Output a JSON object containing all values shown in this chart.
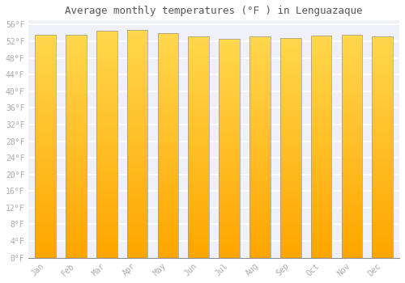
{
  "title": "Average monthly temperatures (°F ) in Lenguazaque",
  "months": [
    "Jan",
    "Feb",
    "Mar",
    "Apr",
    "May",
    "Jun",
    "Jul",
    "Aug",
    "Sep",
    "Oct",
    "Nov",
    "Dec"
  ],
  "values": [
    53.6,
    53.6,
    54.5,
    54.7,
    54.0,
    53.1,
    52.5,
    53.1,
    52.7,
    53.4,
    53.6,
    53.2
  ],
  "bar_color_bottom": "#FFA500",
  "bar_color_top": "#FFD84D",
  "bar_edge_color": "#999999",
  "background_color": "#ffffff",
  "plot_bg_color": "#f0f0f8",
  "grid_color": "#ffffff",
  "ytick_labels": [
    "0°F",
    "4°F",
    "8°F",
    "12°F",
    "16°F",
    "20°F",
    "24°F",
    "28°F",
    "32°F",
    "36°F",
    "40°F",
    "44°F",
    "48°F",
    "52°F",
    "56°F"
  ],
  "ytick_values": [
    0,
    4,
    8,
    12,
    16,
    20,
    24,
    28,
    32,
    36,
    40,
    44,
    48,
    52,
    56
  ],
  "ylim": [
    0,
    57
  ],
  "title_fontsize": 9,
  "tick_fontsize": 7,
  "font_color": "#aaaaaa",
  "title_color": "#555555",
  "n_gradient_steps": 100
}
